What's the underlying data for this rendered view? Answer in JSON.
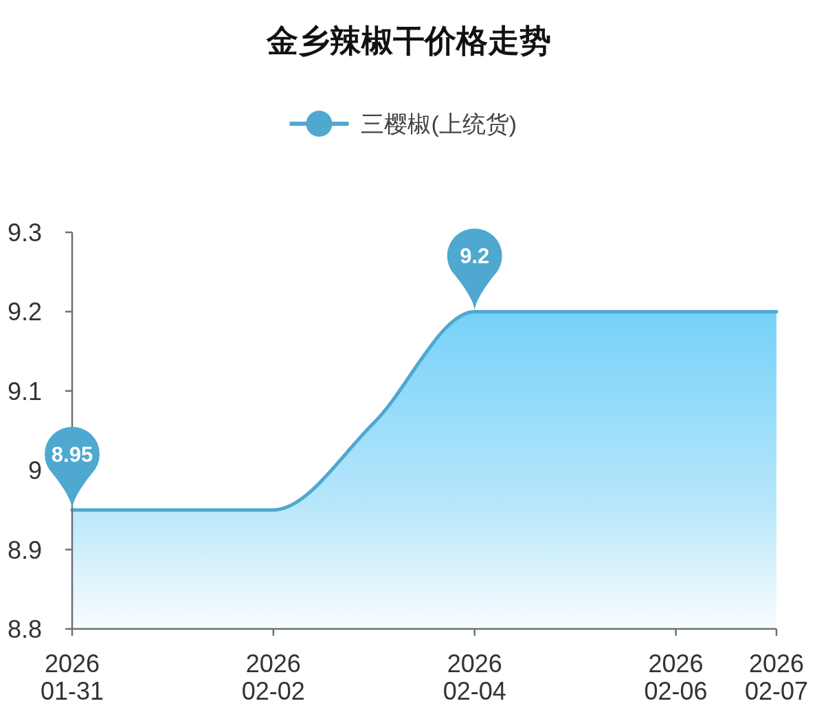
{
  "chart_data": {
    "type": "area",
    "title": "金乡辣椒干价格走势",
    "x": [
      "2026-01-31",
      "2026-02-01",
      "2026-02-02",
      "2026-02-03",
      "2026-02-04",
      "2026-02-05",
      "2026-02-06",
      "2026-02-07"
    ],
    "series": [
      {
        "name": "三樱椒(上统货)",
        "color": "#4ea8cf",
        "values": [
          8.95,
          8.95,
          8.95,
          9.06,
          9.2,
          9.2,
          9.2,
          9.2
        ]
      }
    ],
    "xlim": [
      "2026-01-31",
      "2026-02-07"
    ],
    "xticks": [
      {
        "value": "2026-01-31",
        "label": "2026\n01-31"
      },
      {
        "value": "2026-02-02",
        "label": "2026\n02-02"
      },
      {
        "value": "2026-02-04",
        "label": "2026\n02-04"
      },
      {
        "value": "2026-02-06",
        "label": "2026\n02-06"
      },
      {
        "value": "2026-02-07",
        "label": "2026\n02-07"
      }
    ],
    "ylim": [
      8.8,
      9.3
    ],
    "yticks": [
      8.8,
      8.9,
      9,
      9.1,
      9.2,
      9.3
    ],
    "grid": false,
    "legend": "top",
    "annotations": [
      {
        "text": "8.95",
        "x": "2026-01-31",
        "y": 8.95
      },
      {
        "text": "9.2",
        "x": "2026-02-04",
        "y": 9.2
      }
    ]
  }
}
